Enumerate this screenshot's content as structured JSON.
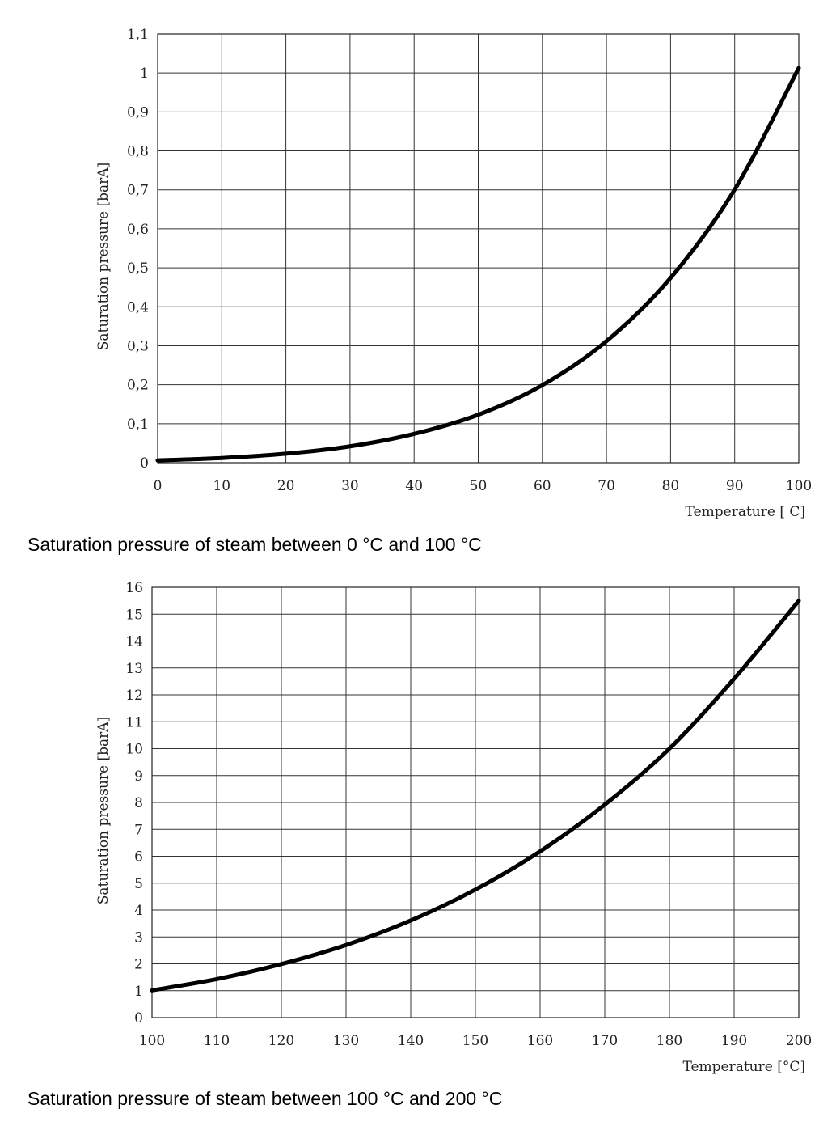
{
  "chart_data": [
    {
      "type": "line",
      "caption": "Saturation pressure of steam between 0 °C and 100 °C",
      "xlabel": "Temperature [ C]",
      "ylabel": "Saturation pressure [barA]",
      "xlim": [
        0,
        100
      ],
      "ylim": [
        0,
        1.1
      ],
      "x_ticks": [
        "0",
        "10",
        "20",
        "30",
        "40",
        "50",
        "60",
        "70",
        "80",
        "90",
        "100"
      ],
      "y_ticks": [
        "0",
        "0,1",
        "0,2",
        "0,3",
        "0,4",
        "0,5",
        "0,6",
        "0,7",
        "0,8",
        "0,9",
        "1",
        "1,1"
      ],
      "grid": true,
      "series": [
        {
          "name": "Saturation pressure",
          "x": [
            0,
            10,
            20,
            30,
            40,
            50,
            60,
            70,
            80,
            90,
            100
          ],
          "y": [
            0.006,
            0.012,
            0.023,
            0.042,
            0.074,
            0.123,
            0.199,
            0.312,
            0.474,
            0.701,
            1.013
          ]
        }
      ]
    },
    {
      "type": "line",
      "caption": "Saturation pressure of steam between 100 °C and 200 °C",
      "xlabel": "Temperature [°C]",
      "ylabel": "Saturation pressure [barA]",
      "xlim": [
        100,
        200
      ],
      "ylim": [
        0,
        16
      ],
      "x_ticks": [
        "100",
        "110",
        "120",
        "130",
        "140",
        "150",
        "160",
        "170",
        "180",
        "190",
        "200"
      ],
      "y_ticks": [
        "0",
        "1",
        "2",
        "3",
        "4",
        "5",
        "6",
        "7",
        "8",
        "9",
        "10",
        "11",
        "12",
        "13",
        "14",
        "15",
        "16"
      ],
      "grid": true,
      "series": [
        {
          "name": "Saturation pressure",
          "x": [
            100,
            110,
            120,
            130,
            140,
            150,
            160,
            170,
            180,
            190,
            200
          ],
          "y": [
            1.013,
            1.43,
            1.99,
            2.7,
            3.61,
            4.76,
            6.18,
            7.92,
            10.0,
            12.6,
            15.5
          ]
        }
      ]
    }
  ]
}
